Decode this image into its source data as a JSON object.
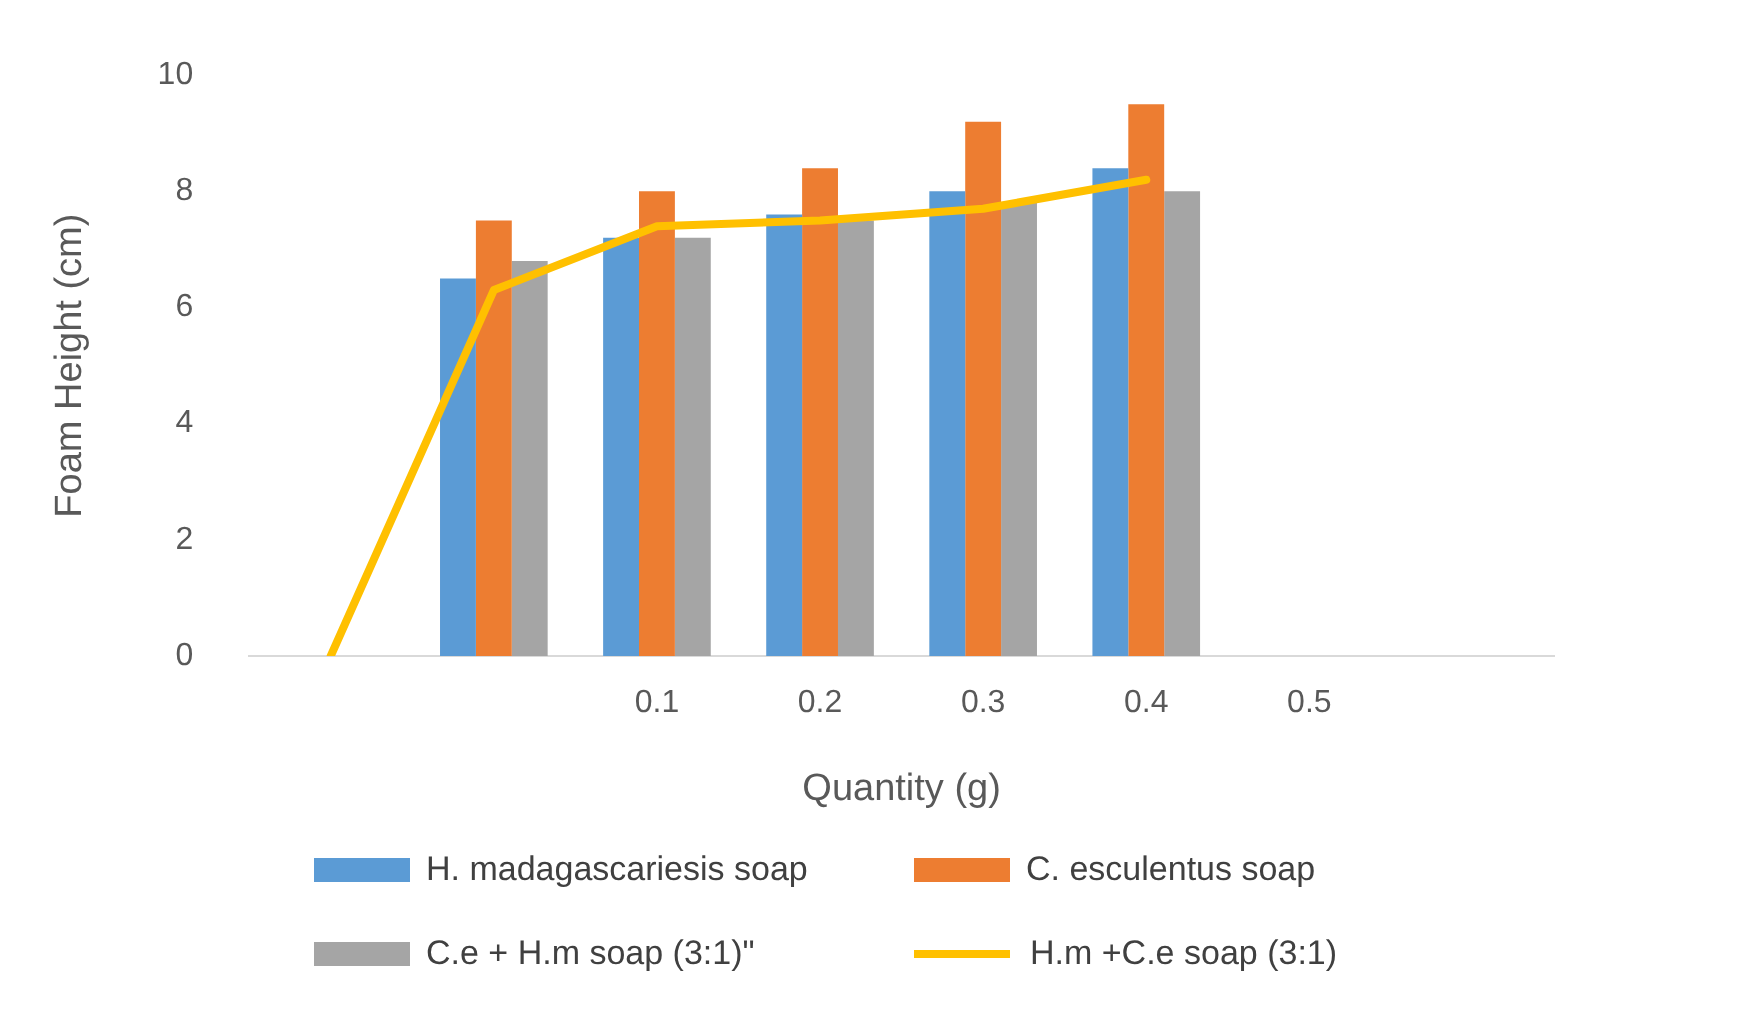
{
  "chart_data": {
    "type": "bar",
    "xlabel": "Quantity (g)",
    "ylabel": "Foam Height (cm)",
    "categories": [
      null,
      null,
      "0.1",
      "0.2",
      "0.3",
      "0.4",
      "0.5",
      null
    ],
    "series": [
      {
        "name": "H. madagascariesis soap",
        "color": "#5b9bd5",
        "values": [
          null,
          6.5,
          7.2,
          7.6,
          8.0,
          8.4,
          null,
          null
        ]
      },
      {
        "name": "C. esculentus soap",
        "color": "#ed7d31",
        "values": [
          null,
          7.5,
          8.0,
          8.4,
          9.2,
          9.5,
          null,
          null
        ]
      },
      {
        "name": "C.e + H.m soap (3:1)\"",
        "color": "#a5a5a5",
        "values": [
          null,
          6.8,
          7.2,
          7.5,
          7.8,
          8.0,
          null,
          null
        ]
      },
      {
        "name": "H.m +C.e soap (3:1)",
        "color": "#ffc000",
        "type": "line",
        "values": [
          0,
          6.3,
          7.4,
          7.5,
          7.7,
          8.2,
          null,
          null
        ]
      }
    ],
    "ylim": [
      0,
      10
    ],
    "yticks": [
      0,
      2,
      4,
      6,
      8,
      10
    ],
    "grid": false,
    "legend": "bottom",
    "marker": "none",
    "line_style": "solid"
  }
}
